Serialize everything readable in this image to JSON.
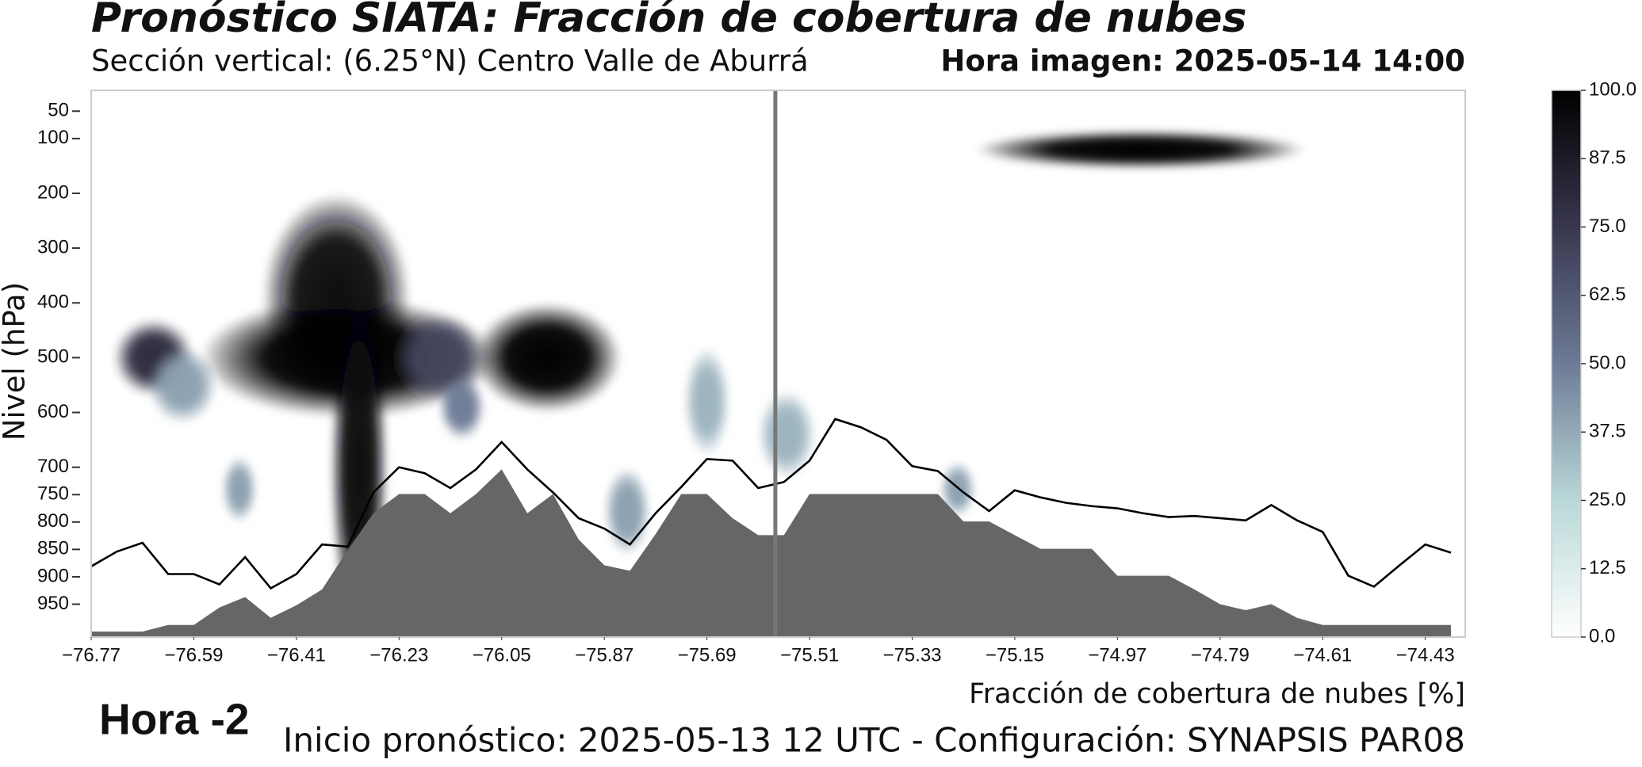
{
  "chart_data": {
    "type": "cross-section",
    "title": "Pronóstico SIATA: Fracción de cobertura de nubes",
    "subtitle": "Sección vertical: (6.25°N) Centro Valle de Aburrá",
    "time_label": "Hora imagen: 2025-05-14 14:00",
    "ylabel": "Nivel (hPa)",
    "xlabel": "Fracción de cobertura de nubes [%]",
    "panel_label": "Hora -2",
    "footer": "Inicio pronóstico: 2025-05-13 12 UTC - Configuración: SYNAPSIS PAR08",
    "xlim": [
      -76.77,
      -74.36
    ],
    "ylim": [
      1010,
      12
    ],
    "xticks": [
      {
        "value": -76.77,
        "label": "−76.77"
      },
      {
        "value": -76.59,
        "label": "−76.59"
      },
      {
        "value": -76.41,
        "label": "−76.41"
      },
      {
        "value": -76.23,
        "label": "−76.23"
      },
      {
        "value": -76.05,
        "label": "−76.05"
      },
      {
        "value": -75.87,
        "label": "−75.87"
      },
      {
        "value": -75.69,
        "label": "−75.69"
      },
      {
        "value": -75.51,
        "label": "−75.51"
      },
      {
        "value": -75.33,
        "label": "−75.33"
      },
      {
        "value": -75.15,
        "label": "−75.15"
      },
      {
        "value": -74.97,
        "label": "−74.97"
      },
      {
        "value": -74.79,
        "label": "−74.79"
      },
      {
        "value": -74.61,
        "label": "−74.61"
      },
      {
        "value": -74.43,
        "label": "−74.43"
      }
    ],
    "yticks": [
      50,
      100,
      200,
      300,
      400,
      500,
      600,
      700,
      750,
      800,
      850,
      900,
      950
    ],
    "marker_x": -75.57,
    "marker_color": "#777777",
    "x": [
      -76.77,
      -76.725,
      -76.68,
      -76.635,
      -76.59,
      -76.545,
      -76.5,
      -76.455,
      -76.41,
      -76.365,
      -76.32,
      -76.275,
      -76.23,
      -76.185,
      -76.14,
      -76.095,
      -76.05,
      -76.005,
      -75.96,
      -75.915,
      -75.87,
      -75.825,
      -75.78,
      -75.735,
      -75.69,
      -75.645,
      -75.6,
      -75.555,
      -75.51,
      -75.465,
      -75.42,
      -75.375,
      -75.33,
      -75.285,
      -75.24,
      -75.195,
      -75.15,
      -75.105,
      -75.06,
      -75.015,
      -74.97,
      -74.925,
      -74.88,
      -74.835,
      -74.79,
      -74.745,
      -74.7,
      -74.655,
      -74.61,
      -74.565,
      -74.52,
      -74.475,
      -74.43,
      -74.385
    ],
    "series": [
      {
        "kind": "area",
        "color": "#666666",
        "values": [
          1000,
          1000,
          1000,
          988,
          988,
          956,
          937,
          975,
          952,
          923,
          851,
          784,
          749,
          749,
          784,
          749,
          704,
          784,
          749,
          832,
          879,
          889,
          822,
          749,
          749,
          793,
          824,
          824,
          749,
          749,
          749,
          749,
          749,
          749,
          799,
          799,
          824,
          849,
          849,
          849,
          898,
          898,
          898,
          923,
          950,
          961,
          950,
          975,
          988,
          988,
          988,
          988,
          988,
          988
        ]
      },
      {
        "kind": "line",
        "color": "#000000",
        "values": [
          881,
          854,
          838,
          895,
          895,
          914,
          864,
          921,
          895,
          841,
          845,
          746,
          700,
          711,
          738,
          704,
          654,
          704,
          746,
          793,
          812,
          841,
          784,
          736,
          685,
          688,
          738,
          727,
          688,
          612,
          627,
          650,
          698,
          707,
          746,
          780,
          742,
          755,
          765,
          771,
          775,
          784,
          791,
          789,
          793,
          797,
          769,
          797,
          818,
          898,
          918,
          879,
          841,
          856
        ]
      }
    ],
    "clouds": [
      {
        "lon": -76.66,
        "level": 500,
        "lon_span": 0.07,
        "level_span": 70,
        "value": 80
      },
      {
        "lon": -76.61,
        "level": 550,
        "lon_span": 0.06,
        "level_span": 70,
        "value": 40
      },
      {
        "lon": -76.34,
        "level": 390,
        "lon_span": 0.13,
        "level_span": 190,
        "value": 95
      },
      {
        "lon": -76.32,
        "level": 500,
        "lon_span": 0.26,
        "level_span": 110,
        "value": 100
      },
      {
        "lon": -76.3,
        "level": 700,
        "lon_span": 0.05,
        "level_span": 320,
        "value": 95
      },
      {
        "lon": -76.16,
        "level": 500,
        "lon_span": 0.08,
        "level_span": 80,
        "value": 70
      },
      {
        "lon": -76.12,
        "level": 590,
        "lon_span": 0.04,
        "level_span": 60,
        "value": 50
      },
      {
        "lon": -75.97,
        "level": 500,
        "lon_span": 0.13,
        "level_span": 100,
        "value": 100
      },
      {
        "lon": -75.83,
        "level": 780,
        "lon_span": 0.04,
        "level_span": 80,
        "value": 40
      },
      {
        "lon": -75.69,
        "level": 580,
        "lon_span": 0.04,
        "level_span": 100,
        "value": 35
      },
      {
        "lon": -75.55,
        "level": 640,
        "lon_span": 0.05,
        "level_span": 80,
        "value": 35
      },
      {
        "lon": -74.93,
        "level": 120,
        "lon_span": 0.29,
        "level_span": 35,
        "value": 100
      },
      {
        "lon": -76.51,
        "level": 740,
        "lon_span": 0.03,
        "level_span": 60,
        "value": 40
      },
      {
        "lon": -75.25,
        "level": 740,
        "lon_span": 0.03,
        "level_span": 50,
        "value": 40
      }
    ],
    "colormap": [
      "#ffffff",
      "#b9d8d8",
      "#6d7b96",
      "#38374f",
      "#000000"
    ],
    "colorbar": {
      "lim": [
        0,
        100
      ],
      "ticks": [
        {
          "value": 0,
          "label": "0.0"
        },
        12.5,
        {
          "value": 25,
          "label": "25.0"
        },
        37.5,
        {
          "value": 50,
          "label": "50.0"
        },
        62.5,
        {
          "value": 75,
          "label": "75.0"
        },
        87.5,
        {
          "value": 100,
          "label": "100.0"
        }
      ]
    }
  }
}
